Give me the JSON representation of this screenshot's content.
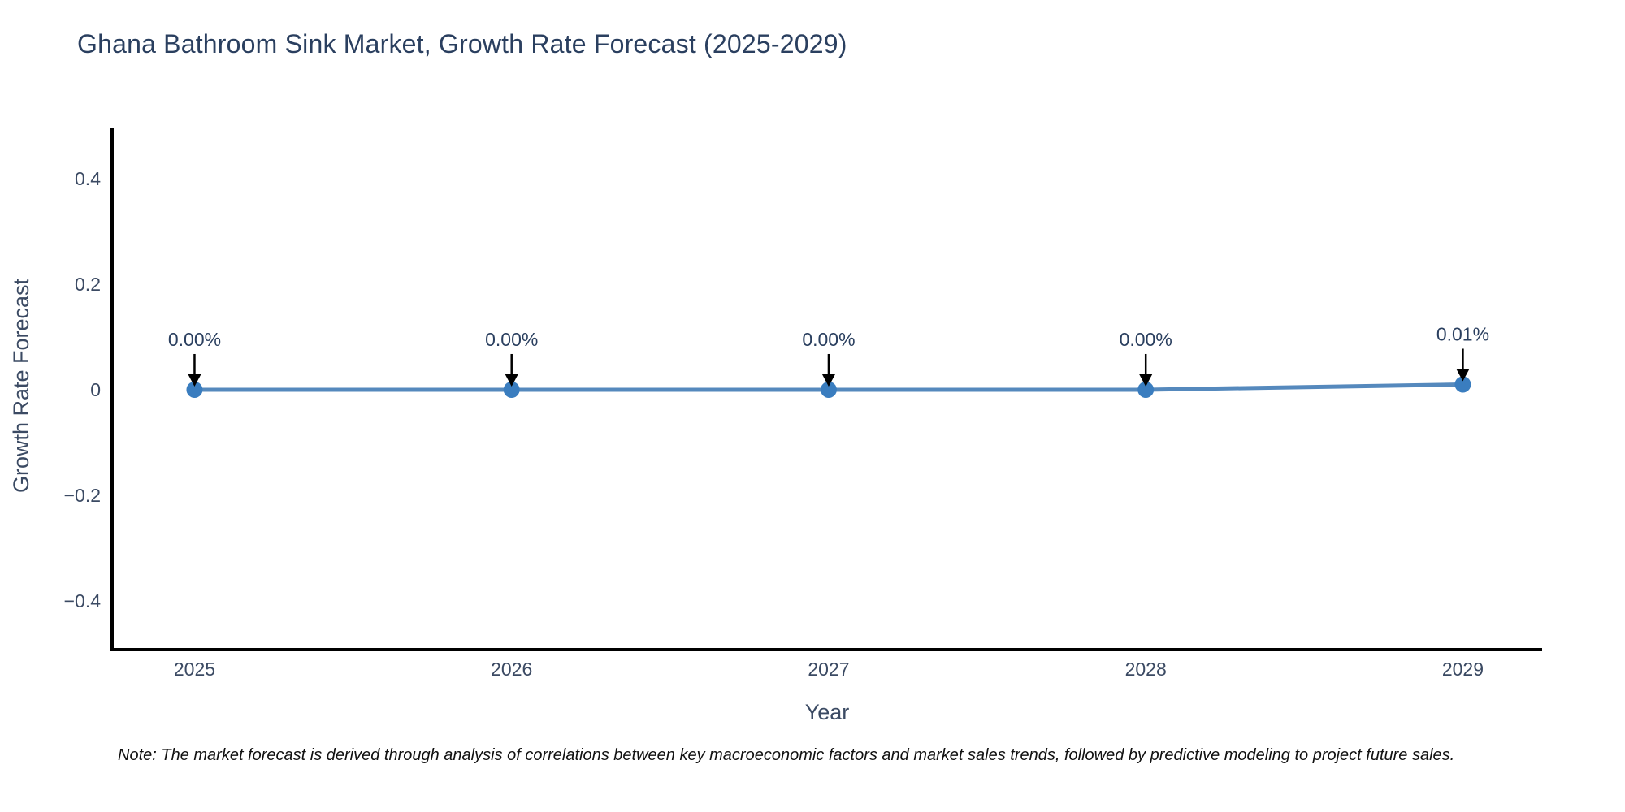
{
  "header": {
    "title": "Ghana Bathroom Sink Market, Growth Rate Forecast (2025-2029)"
  },
  "chart_data": {
    "type": "line",
    "x": [
      2025,
      2026,
      2027,
      2028,
      2029
    ],
    "values": [
      0.0,
      0.0,
      0.0,
      0.0,
      0.01
    ],
    "point_labels": [
      "0.00%",
      "0.00%",
      "0.00%",
      "0.00%",
      "0.01%"
    ],
    "xtick_labels": [
      "2025",
      "2026",
      "2027",
      "2028",
      "2029"
    ],
    "yticks": [
      0.4,
      0.2,
      0,
      -0.2,
      -0.4
    ],
    "ytick_labels": [
      "0.4",
      "0.2",
      "0",
      "−0.2",
      "−0.4"
    ],
    "xlabel": "Year",
    "ylabel": "Growth Rate Forecast",
    "xlim": [
      2024.74,
      2029.25
    ],
    "ylim": [
      -0.492,
      0.495
    ],
    "grid": false,
    "legend": false,
    "colors": {
      "line": "#5589bd",
      "marker": "#3a7dbf",
      "arrow": "#000000",
      "axis": "#000000",
      "tick_label": "#3b4a63",
      "annotation": "#2a3f5f",
      "title": "#2a3f5f"
    }
  },
  "footer": {
    "note": "Note: The market forecast is derived through analysis of correlations between key macroeconomic factors and market sales trends, followed by predictive modeling to project future sales."
  }
}
